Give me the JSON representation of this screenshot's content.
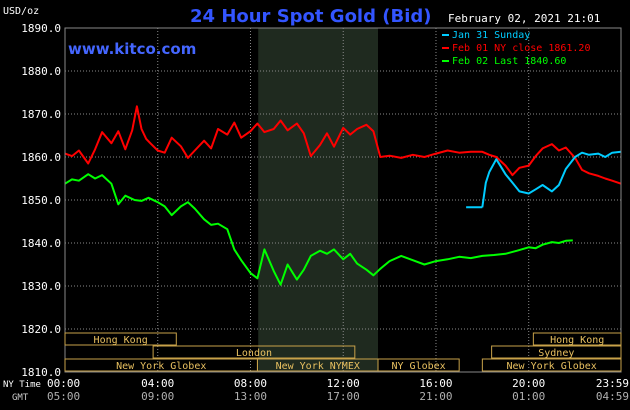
{
  "chart_data": {
    "type": "line",
    "title": "24 Hour Spot Gold (Bid)",
    "site": "www.kitco.com",
    "timestamp": "February 02, 2021 21:01",
    "ylabel": "USD/oz",
    "ylim": [
      1810,
      1890
    ],
    "yticks": [
      "1890.0",
      "1880.0",
      "1870.0",
      "1860.0",
      "1850.0",
      "1840.0",
      "1830.0",
      "1820.0",
      "1810.0"
    ],
    "grid": true,
    "legend_position": "top-right",
    "x_axis_label_ny": "NY Time",
    "x_axis_label_gmt": "GMT",
    "xticks_ny": [
      "00:00",
      "04:00",
      "08:00",
      "12:00",
      "16:00",
      "20:00",
      "23:59"
    ],
    "xticks_gmt": [
      "05:00",
      "09:00",
      "13:00",
      "17:00",
      "21:00",
      "01:00",
      "04:59"
    ],
    "shaded_session": [
      "08:20",
      "13:30"
    ],
    "series": [
      {
        "name": "Feb 01 NY close 1861.20",
        "color": "#ff0000",
        "x": [
          0,
          0.3,
          0.6,
          1.0,
          1.3,
          1.6,
          2.0,
          2.3,
          2.6,
          2.9,
          3.1,
          3.3,
          3.5,
          3.7,
          4.0,
          4.3,
          4.6,
          5.0,
          5.3,
          5.6,
          6.0,
          6.3,
          6.6,
          7.0,
          7.3,
          7.6,
          8.0,
          8.3,
          8.6,
          9.0,
          9.3,
          9.6,
          10.0,
          10.3,
          10.6,
          11.0,
          11.3,
          11.6,
          12.0,
          12.3,
          12.6,
          13.0,
          13.3,
          13.6,
          14.0,
          14.5,
          15.0,
          15.5,
          16.0,
          16.5,
          17.0,
          17.5,
          18.0,
          18.3,
          18.6,
          19.0,
          19.3,
          19.6,
          20.0,
          20.3,
          20.6,
          21.0,
          21.3,
          21.6,
          22.0,
          22.3,
          22.6,
          23.0,
          23.3,
          23.6,
          23.98
        ],
        "values": [
          1860.8,
          1860.2,
          1861.5,
          1858.5,
          1861.8,
          1865.8,
          1863.2,
          1866.0,
          1861.8,
          1866.2,
          1871.8,
          1866.5,
          1864.2,
          1863.1,
          1861.5,
          1861.0,
          1864.5,
          1862.5,
          1859.8,
          1861.5,
          1863.8,
          1862.0,
          1866.5,
          1865.2,
          1868.0,
          1864.5,
          1866.0,
          1867.8,
          1865.8,
          1866.5,
          1868.5,
          1866.2,
          1867.8,
          1865.5,
          1860.2,
          1862.8,
          1865.5,
          1862.4,
          1866.8,
          1865.2,
          1866.5,
          1867.5,
          1866.0,
          1860.0,
          1860.3,
          1859.8,
          1860.5,
          1860.0,
          1860.8,
          1861.5,
          1861.0,
          1861.2,
          1861.2,
          1860.5,
          1860.0,
          1858.0,
          1855.8,
          1857.5,
          1858.0,
          1860.2,
          1862.0,
          1863.0,
          1861.5,
          1862.2,
          1859.8,
          1857.0,
          1856.2,
          1855.6,
          1855.0,
          1854.5,
          1853.8
        ]
      },
      {
        "name": "Jan 31 Sunday",
        "color": "#00ccff",
        "x": [
          18.0,
          18.15,
          18.3,
          18.6,
          19.0,
          19.3,
          19.6,
          20.0,
          20.3,
          20.6,
          21.0,
          21.3,
          21.6,
          22.0,
          22.3,
          22.6,
          23.0,
          23.3,
          23.6,
          23.98
        ],
        "values": [
          1848.3,
          1854.0,
          1856.5,
          1859.5,
          1856.0,
          1854.0,
          1852.0,
          1851.5,
          1852.5,
          1853.5,
          1852.0,
          1853.5,
          1857.2,
          1860.0,
          1861.0,
          1860.5,
          1860.8,
          1860.0,
          1861.0,
          1861.2
        ]
      },
      {
        "name": "Feb 02 Last 1840.60",
        "color": "#00ff00",
        "x": [
          0,
          0.3,
          0.6,
          1.0,
          1.3,
          1.6,
          2.0,
          2.3,
          2.6,
          3.0,
          3.3,
          3.6,
          4.0,
          4.3,
          4.6,
          5.0,
          5.3,
          5.6,
          6.0,
          6.3,
          6.6,
          7.0,
          7.3,
          7.6,
          8.0,
          8.3,
          8.6,
          9.0,
          9.3,
          9.6,
          10.0,
          10.3,
          10.6,
          11.0,
          11.3,
          11.6,
          12.0,
          12.3,
          12.6,
          13.0,
          13.3,
          13.6,
          14.0,
          14.5,
          15.0,
          15.5,
          16.0,
          16.5,
          17.0,
          17.5,
          18.0,
          18.5,
          19.0,
          19.5,
          20.0,
          20.3,
          20.6,
          21.0,
          21.3,
          21.6,
          21.9
        ],
        "values": [
          1853.8,
          1854.8,
          1854.5,
          1856.0,
          1855.0,
          1855.8,
          1853.8,
          1849.0,
          1851.0,
          1850.0,
          1849.8,
          1850.5,
          1849.5,
          1848.5,
          1846.5,
          1848.5,
          1849.5,
          1848.0,
          1845.5,
          1844.2,
          1844.5,
          1843.2,
          1838.5,
          1836.0,
          1833.0,
          1831.8,
          1838.5,
          1833.5,
          1830.3,
          1835.0,
          1831.5,
          1833.8,
          1837.0,
          1838.2,
          1837.5,
          1838.5,
          1836.2,
          1837.5,
          1835.2,
          1833.8,
          1832.5,
          1834.0,
          1835.8,
          1837.0,
          1836.0,
          1835.0,
          1835.8,
          1836.2,
          1836.8,
          1836.5,
          1837.0,
          1837.2,
          1837.5,
          1838.2,
          1839.0,
          1838.8,
          1839.6,
          1840.2,
          1840.0,
          1840.5,
          1840.6
        ]
      }
    ],
    "session_bars": [
      {
        "label": "Hong Kong",
        "start": 0,
        "end": 4.8
      },
      {
        "label": "London",
        "start": 3.8,
        "end": 12.5
      },
      {
        "label": "New York Globex",
        "start": 0,
        "end": 8.3
      },
      {
        "label": "New York NYMEX",
        "start": 8.3,
        "end": 13.5
      },
      {
        "label": "NY Globex",
        "start": 13.5,
        "end": 17.0
      },
      {
        "label": "Hong Kong",
        "start": 20.2,
        "end": 23.98
      },
      {
        "label": "Sydney",
        "start": 18.4,
        "end": 23.98
      },
      {
        "label": "New York Globex",
        "start": 18.0,
        "end": 23.98
      }
    ]
  }
}
